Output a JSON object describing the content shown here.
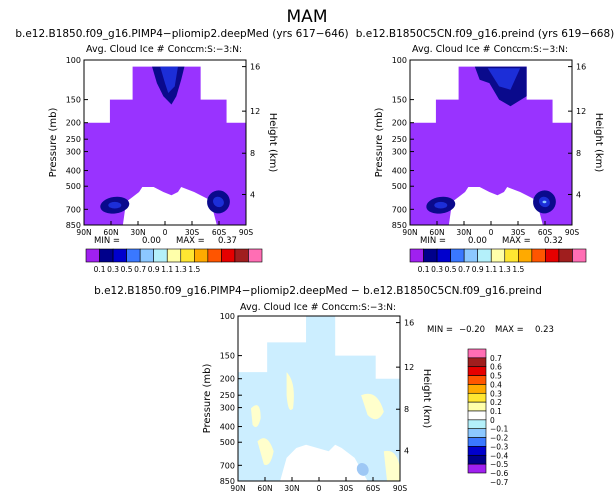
{
  "figure_title": "MAM",
  "chart_data": [
    {
      "type": "contour",
      "title": "b.e12.B1850.f09_g16.PIMP4−pliomip2.deepMed (yrs 617−646)",
      "subtitle": "Avg. Cloud Ice # Conc.",
      "units": "cm:S:−3:N:",
      "ylabel": "Pressure (mb)",
      "ylabel_right": "Height (km)",
      "x_ticks": [
        "90N",
        "60N",
        "30N",
        "0",
        "30S",
        "60S",
        "90S"
      ],
      "y_ticks": [
        "100",
        "150",
        "200",
        "250",
        "300",
        "400",
        "500",
        "700",
        "850"
      ],
      "height_ticks": [
        "16",
        "12",
        "8",
        "4"
      ],
      "stats": {
        "min_label": "MIN =",
        "min": "0.00",
        "max_label": "MAX =",
        "max": "0.37"
      },
      "levels": [
        "0.1",
        "0.3",
        "0.5",
        "0.7",
        "0.9",
        "1.1",
        "1.3",
        "1.5"
      ],
      "colorbar_labels": [
        "0.1",
        "0.3",
        "0.5",
        "0.7",
        "0.9",
        "1.1",
        "1.3",
        "1.5"
      ]
    },
    {
      "type": "contour",
      "title": "b.e12.B1850C5CN.f09_g16.preind (yrs 619−668)",
      "subtitle": "Avg. Cloud Ice # Conc.",
      "units": "cm:S:−3:N:",
      "ylabel": "Pressure (mb)",
      "ylabel_right": "Height (km)",
      "x_ticks": [
        "90N",
        "60N",
        "30N",
        "0",
        "30S",
        "60S",
        "90S"
      ],
      "y_ticks": [
        "100",
        "150",
        "200",
        "250",
        "300",
        "400",
        "500",
        "700",
        "850"
      ],
      "height_ticks": [
        "16",
        "12",
        "8",
        "4"
      ],
      "stats": {
        "min_label": "MIN =",
        "min": "0.00",
        "max_label": "MAX =",
        "max": "0.32"
      },
      "levels": [
        "0.1",
        "0.3",
        "0.5",
        "0.7",
        "0.9",
        "1.1",
        "1.3",
        "1.5"
      ],
      "colorbar_labels": [
        "0.1",
        "0.3",
        "0.5",
        "0.7",
        "0.9",
        "1.1",
        "1.3",
        "1.5"
      ]
    },
    {
      "type": "contour",
      "title": "b.e12.B1850.f09_g16.PIMP4−pliomip2.deepMed − b.e12.B1850C5CN.f09_g16.preind",
      "subtitle": "Avg. Cloud Ice # Conc.",
      "units": "cm:S:−3:N:",
      "ylabel": "Pressure (mb)",
      "ylabel_right": "Height (km)",
      "x_ticks": [
        "90N",
        "60N",
        "30N",
        "0",
        "30S",
        "60S",
        "90S"
      ],
      "y_ticks": [
        "100",
        "150",
        "200",
        "250",
        "300",
        "400",
        "500",
        "700",
        "850"
      ],
      "height_ticks": [
        "16",
        "12",
        "8",
        "4"
      ],
      "stats": {
        "min_label": "MIN =",
        "min": "−0.20",
        "max_label": "MAX =",
        "max": "0.23"
      },
      "levels": [
        "0.7",
        "0.6",
        "0.5",
        "0.4",
        "0.3",
        "0.2",
        "0.1",
        "0",
        "−0.1",
        "−0.2",
        "−0.3",
        "−0.4",
        "−0.5",
        "−0.6",
        "−0.7"
      ],
      "colorbar_labels": [
        "0.7",
        "0.6",
        "0.5",
        "0.4",
        "0.3",
        "0.2",
        "0.1",
        "0",
        "−0.1",
        "−0.2",
        "−0.3",
        "−0.4",
        "−0.5",
        "−0.6",
        "−0.7"
      ]
    }
  ],
  "colors": {
    "mean_palette": [
      "#a020f0",
      "#00008b",
      "#0000cd",
      "#3a78ff",
      "#8cc8ff",
      "#b4f0fa",
      "#ffffaa",
      "#ffe632",
      "#ffaa00",
      "#ff5500",
      "#e60000",
      "#a01e1e",
      "#ff6eb4"
    ],
    "diff_palette": [
      "#ff6eb4",
      "#a01e1e",
      "#e60000",
      "#ff5500",
      "#ffaa00",
      "#ffe632",
      "#ffffaa",
      "#ffffff",
      "#b4f0fa",
      "#8cc8ff",
      "#3a78ff",
      "#0000cd",
      "#00008b",
      "#a020f0"
    ],
    "mean_fill": "#9933ff",
    "mean_core": "#0a0a8c",
    "mean_mid": "#1c2ed8",
    "diff_blue": "#cceeff",
    "diff_yellow": "#ffffcc",
    "diff_mid_blue": "#9ec8f5"
  }
}
